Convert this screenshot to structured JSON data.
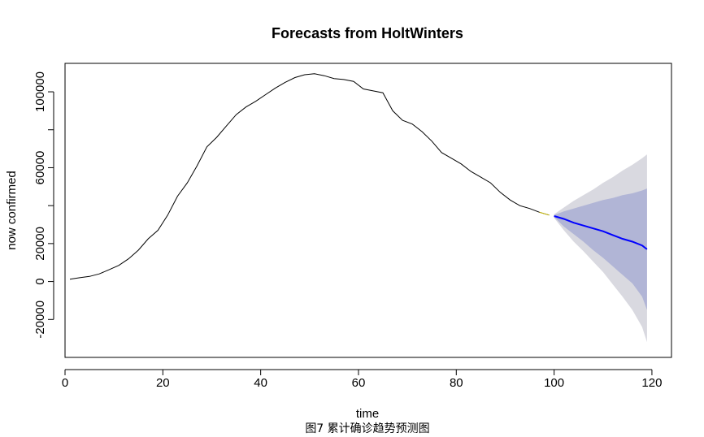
{
  "chart_data": {
    "type": "line",
    "title": "Forecasts from HoltWinters",
    "xlabel": "time",
    "ylabel": "now confirmed",
    "caption": "图7 累计确诊趋势预测图",
    "xlim": [
      0,
      124
    ],
    "ylim": [
      -40000,
      115000
    ],
    "xticks": [
      0,
      20,
      40,
      60,
      80,
      100,
      120
    ],
    "yticks": [
      -20000,
      0,
      20000,
      60000,
      100000
    ],
    "grid": false,
    "colors": {
      "observed": "#000000",
      "forecast": "#0000ff",
      "band80": "#b1b5d6",
      "band95": "#d9d9e0",
      "fitted": "#d4c400"
    },
    "observed": {
      "name": "now confirmed",
      "x": [
        1,
        3,
        5,
        7,
        9,
        11,
        13,
        15,
        17,
        19,
        21,
        23,
        25,
        27,
        29,
        31,
        33,
        35,
        37,
        39,
        41,
        43,
        45,
        47,
        49,
        51,
        53,
        55,
        57,
        59,
        61,
        63,
        65,
        67,
        69,
        71,
        73,
        75,
        77,
        79,
        81,
        83,
        85,
        87,
        89,
        91,
        93,
        95,
        97,
        99
      ],
      "y": [
        1200,
        2000,
        2700,
        4000,
        6200,
        8500,
        12000,
        16500,
        22500,
        27000,
        35000,
        45000,
        52000,
        61000,
        71000,
        76000,
        82000,
        88000,
        92000,
        95000,
        98500,
        102000,
        105000,
        107500,
        109000,
        109500,
        108500,
        107000,
        106500,
        105500,
        101500,
        100500,
        99500,
        90000,
        85000,
        83000,
        79000,
        74000,
        68000,
        65000,
        62000,
        58000,
        55000,
        52000,
        47000,
        43000,
        40000,
        38500,
        36500,
        35000
      ]
    },
    "forecast": {
      "name": "forecast",
      "x": [
        100,
        102,
        104,
        106,
        108,
        110,
        112,
        114,
        116,
        118,
        119
      ],
      "y": [
        34500,
        33000,
        31000,
        29500,
        28000,
        26500,
        24500,
        22500,
        21000,
        19000,
        17000
      ]
    },
    "band80": {
      "x": [
        100,
        102,
        104,
        106,
        108,
        110,
        112,
        114,
        116,
        118,
        119
      ],
      "upper": [
        35000,
        37000,
        38500,
        40000,
        41500,
        43000,
        44000,
        45500,
        46500,
        48000,
        49000
      ],
      "lower": [
        34000,
        29000,
        25000,
        21000,
        16500,
        12500,
        8000,
        3500,
        -1000,
        -8000,
        -15000
      ]
    },
    "band95": {
      "x": [
        100,
        102,
        104,
        106,
        108,
        110,
        112,
        114,
        116,
        118,
        119
      ],
      "upper": [
        35500,
        39000,
        42500,
        45500,
        48500,
        52000,
        55000,
        58500,
        61500,
        65000,
        67000
      ],
      "lower": [
        33500,
        27000,
        21000,
        16000,
        10500,
        5000,
        -1500,
        -8000,
        -15000,
        -24000,
        -32000
      ]
    }
  }
}
